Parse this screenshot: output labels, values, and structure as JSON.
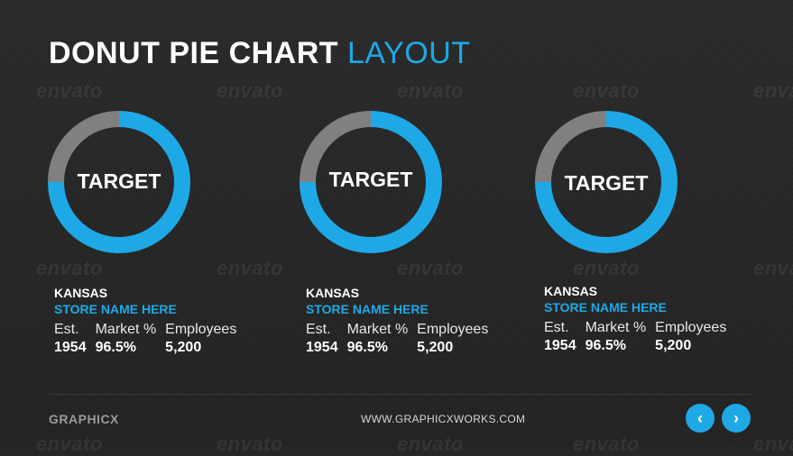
{
  "title": {
    "main": "DONUT PIE CHART",
    "accent": "LAYOUT"
  },
  "watermark_text": "envato",
  "colors": {
    "accent": "#1ea9e6",
    "gray": "#808080",
    "background": "#262626"
  },
  "chart_data": [
    {
      "type": "pie",
      "center_label": "TARGET",
      "values": [
        75,
        25
      ],
      "slice_colors": [
        "#1ea9e6",
        "#808080"
      ],
      "state": "KANSAS",
      "store": "STORE NAME HERE",
      "stats": [
        {
          "label": "Est.",
          "value": "1954"
        },
        {
          "label": "Market %",
          "value": "96.5%"
        },
        {
          "label": "Employees",
          "value": "5,200"
        }
      ]
    },
    {
      "type": "pie",
      "center_label": "TARGET",
      "values": [
        75,
        25
      ],
      "slice_colors": [
        "#1ea9e6",
        "#808080"
      ],
      "state": "KANSAS",
      "store": "STORE NAME HERE",
      "stats": [
        {
          "label": "Est.",
          "value": "1954"
        },
        {
          "label": "Market %",
          "value": "96.5%"
        },
        {
          "label": "Employees",
          "value": "5,200"
        }
      ]
    },
    {
      "type": "pie",
      "center_label": "TARGET",
      "values": [
        75,
        25
      ],
      "slice_colors": [
        "#1ea9e6",
        "#808080"
      ],
      "state": "KANSAS",
      "store": "STORE NAME HERE",
      "stats": [
        {
          "label": "Est.",
          "value": "1954"
        },
        {
          "label": "Market %",
          "value": "96.5%"
        },
        {
          "label": "Employees",
          "value": "5,200"
        }
      ]
    }
  ],
  "footer": {
    "brand": "GRAPHICX",
    "url": "WWW.GRAPHICXWORKS.COM",
    "prev_icon": "chevron-left-icon",
    "next_icon": "chevron-right-icon",
    "prev_glyph": "‹",
    "next_glyph": "›"
  }
}
